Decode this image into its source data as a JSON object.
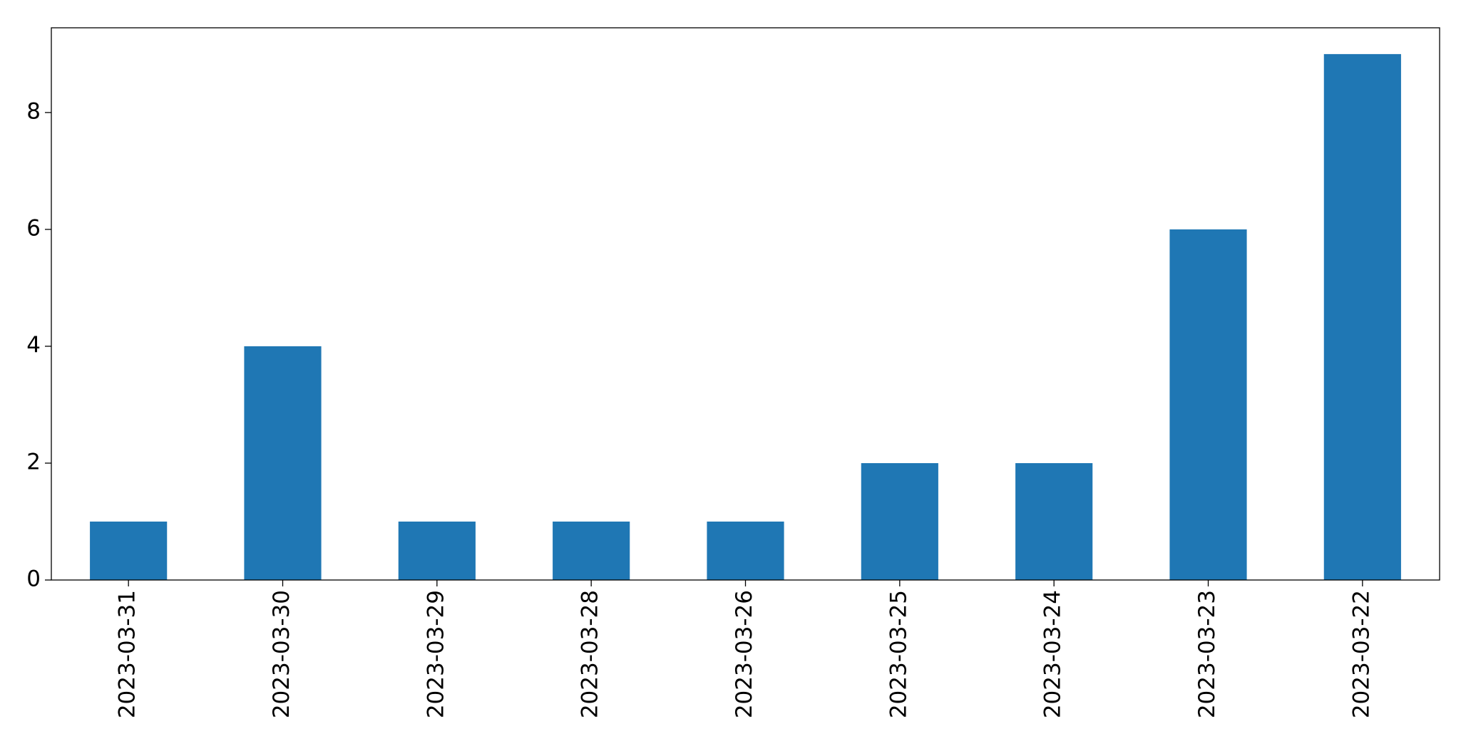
{
  "chart_data": {
    "type": "bar",
    "categories": [
      "2023-03-31",
      "2023-03-30",
      "2023-03-29",
      "2023-03-28",
      "2023-03-26",
      "2023-03-25",
      "2023-03-24",
      "2023-03-23",
      "2023-03-22"
    ],
    "values": [
      1,
      4,
      1,
      1,
      1,
      2,
      2,
      6,
      9
    ],
    "color": "#1f77b4",
    "ylim": [
      0,
      9.45
    ],
    "yticks": [
      0,
      2,
      4,
      6,
      8
    ],
    "grid": false
  }
}
